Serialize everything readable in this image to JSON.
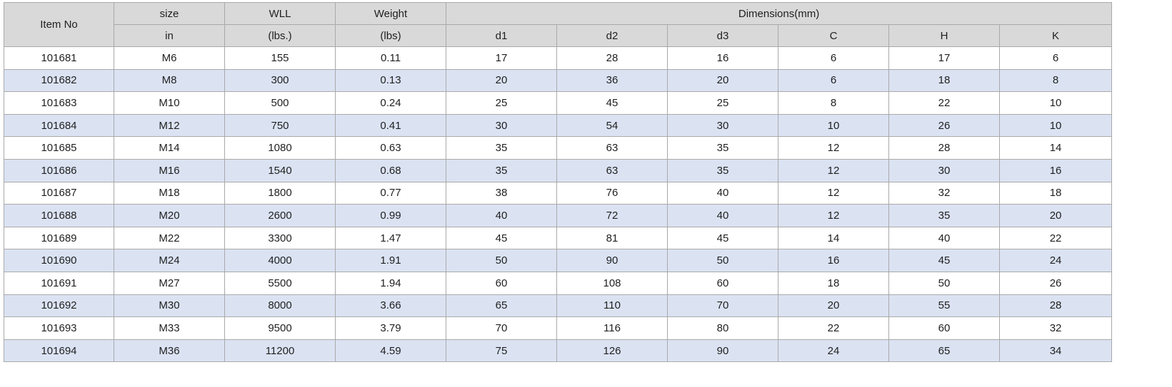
{
  "header": {
    "item_no": "Item No",
    "size": "size",
    "size_unit": "in",
    "wll": "WLL",
    "wll_unit": "(lbs.)",
    "weight": "Weight",
    "weight_unit": "(lbs)",
    "dimensions": "Dimensions(mm)",
    "dims": [
      "d1",
      "d2",
      "d3",
      "C",
      "H",
      "K"
    ]
  },
  "rows": [
    [
      "101681",
      "M6",
      "155",
      "0.11",
      "17",
      "28",
      "16",
      "6",
      "17",
      "6"
    ],
    [
      "101682",
      "M8",
      "300",
      "0.13",
      "20",
      "36",
      "20",
      "6",
      "18",
      "8"
    ],
    [
      "101683",
      "M10",
      "500",
      "0.24",
      "25",
      "45",
      "25",
      "8",
      "22",
      "10"
    ],
    [
      "101684",
      "M12",
      "750",
      "0.41",
      "30",
      "54",
      "30",
      "10",
      "26",
      "10"
    ],
    [
      "101685",
      "M14",
      "1080",
      "0.63",
      "35",
      "63",
      "35",
      "12",
      "28",
      "14"
    ],
    [
      "101686",
      "M16",
      "1540",
      "0.68",
      "35",
      "63",
      "35",
      "12",
      "30",
      "16"
    ],
    [
      "101687",
      "M18",
      "1800",
      "0.77",
      "38",
      "76",
      "40",
      "12",
      "32",
      "18"
    ],
    [
      "101688",
      "M20",
      "2600",
      "0.99",
      "40",
      "72",
      "40",
      "12",
      "35",
      "20"
    ],
    [
      "101689",
      "M22",
      "3300",
      "1.47",
      "45",
      "81",
      "45",
      "14",
      "40",
      "22"
    ],
    [
      "101690",
      "M24",
      "4000",
      "1.91",
      "50",
      "90",
      "50",
      "16",
      "45",
      "24"
    ],
    [
      "101691",
      "M27",
      "5500",
      "1.94",
      "60",
      "108",
      "60",
      "18",
      "50",
      "26"
    ],
    [
      "101692",
      "M30",
      "8000",
      "3.66",
      "65",
      "110",
      "70",
      "20",
      "55",
      "28"
    ],
    [
      "101693",
      "M33",
      "9500",
      "3.79",
      "70",
      "116",
      "80",
      "22",
      "60",
      "32"
    ],
    [
      "101694",
      "M36",
      "11200",
      "4.59",
      "75",
      "126",
      "90",
      "24",
      "65",
      "34"
    ]
  ],
  "colors": {
    "header_bg": "#d9d9d9",
    "row_alt_bg": "#dbe3f3",
    "row_bg": "#ffffff",
    "border": "#a9a9a9"
  }
}
